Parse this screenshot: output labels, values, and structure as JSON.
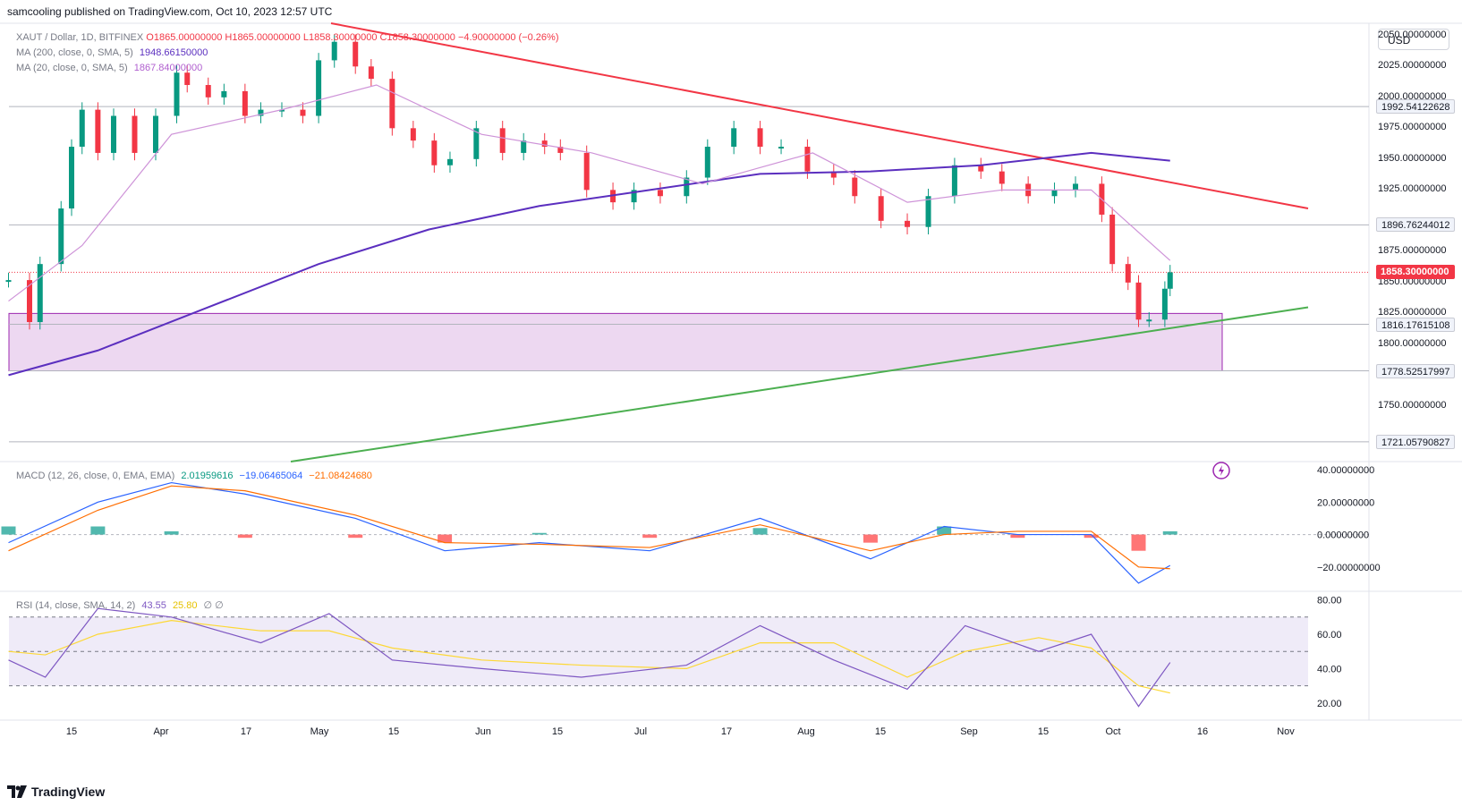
{
  "header": {
    "publisher_line": "samcooling published on TradingView.com, Oct 10, 2023 12:57 UTC"
  },
  "main_pane": {
    "symbol_prefix": "XAUT / Dollar, 1D, BITFINEX",
    "ohlc_line": "O1865.00000000  H1865.00000000  L1858.30000000  C1858.30000000  −4.90000000 (−0.26%)",
    "ma200_label": "MA (200, close, 0, SMA, 5)",
    "ma200_value": "1948.66150000",
    "ma20_label": "MA (20, close, 0, SMA, 5)",
    "ma20_value": "1867.84000000",
    "currency": "USD",
    "axis_ticks": [
      "2050.00000000",
      "2025.00000000",
      "2000.00000000",
      "1975.00000000",
      "1950.00000000",
      "1925.00000000",
      "1875.00000000",
      "1850.00000000",
      "1825.00000000",
      "1800.00000000",
      "1750.00000000"
    ],
    "price_tags": [
      "1992.54122628",
      "1896.76244012",
      "1816.17615108",
      "1778.52517997",
      "1721.05790827"
    ],
    "last_price_tag": "1858.30000000"
  },
  "macd_pane": {
    "label": "MACD (12, 26, close, 0, EMA, EMA)",
    "hist_value": "2.01959616",
    "macd_value": "−19.06465064",
    "signal_value": "−21.08424680",
    "axis_ticks": [
      "40.00000000",
      "20.00000000",
      "0.00000000",
      "−20.00000000"
    ]
  },
  "rsi_pane": {
    "label": "RSI (14, close, SMA, 14, 2)",
    "rsi_value": "43.55",
    "ma_value": "25.80",
    "extra": "∅  ∅",
    "axis_ticks": [
      "80.00",
      "60.00",
      "40.00",
      "20.00"
    ]
  },
  "time_axis": [
    "15",
    "Apr",
    "17",
    "May",
    "15",
    "Jun",
    "15",
    "Jul",
    "17",
    "Aug",
    "15",
    "Sep",
    "15",
    "Oct",
    "16",
    "Nov"
  ],
  "footer": {
    "brand": "TradingView"
  },
  "chart_data": {
    "type": "line",
    "symbol": "XAUT / Dollar",
    "timeframe": "1D",
    "ylim": [
      1705,
      2060
    ],
    "x_labels": [
      "15",
      "Apr",
      "17",
      "May",
      "15",
      "Jun",
      "15",
      "Jul",
      "17",
      "Aug",
      "15",
      "Sep",
      "15",
      "Oct",
      "16",
      "Nov"
    ],
    "price_series": [
      {
        "name": "close",
        "x": [
          "Mar 3",
          "Mar 7",
          "Mar 9",
          "Mar 13",
          "Mar 15",
          "Mar 17",
          "Mar 20",
          "Mar 23",
          "Mar 27",
          "Mar 31",
          "Apr 4",
          "Apr 6",
          "Apr 10",
          "Apr 13",
          "Apr 17",
          "Apr 20",
          "Apr 24",
          "Apr 28",
          "May 1",
          "May 4",
          "May 8",
          "May 11",
          "May 15",
          "May 19",
          "May 23",
          "May 26",
          "May 31",
          "Jun 5",
          "Jun 9",
          "Jun 13",
          "Jun 16",
          "Jun 21",
          "Jun 26",
          "Jun 30",
          "Jul 5",
          "Jul 10",
          "Jul 14",
          "Jul 19",
          "Jul 24",
          "Jul 28",
          "Aug 2",
          "Aug 7",
          "Aug 11",
          "Aug 16",
          "Aug 21",
          "Aug 25",
          "Aug 30",
          "Sep 4",
          "Sep 8",
          "Sep 13",
          "Sep 18",
          "Sep 22",
          "Sep 27",
          "Sep 29",
          "Oct 2",
          "Oct 4",
          "Oct 6",
          "Oct 9",
          "Oct 10"
        ],
        "values": [
          1852,
          1818,
          1865,
          1910,
          1960,
          1990,
          1955,
          1985,
          1955,
          1985,
          2020,
          2010,
          2000,
          2005,
          1985,
          1990,
          1990,
          1985,
          2030,
          2045,
          2025,
          2015,
          1975,
          1965,
          1945,
          1950,
          1975,
          1955,
          1965,
          1960,
          1955,
          1925,
          1915,
          1925,
          1920,
          1935,
          1960,
          1975,
          1960,
          1960,
          1940,
          1935,
          1920,
          1900,
          1895,
          1920,
          1945,
          1940,
          1930,
          1920,
          1925,
          1930,
          1905,
          1865,
          1850,
          1820,
          1820,
          1845,
          1858.3
        ]
      },
      {
        "name": "MA (200, close, 0, SMA, 5)",
        "x": [
          "Mar 3",
          "Mar 20",
          "Apr 10",
          "May 1",
          "May 22",
          "Jun 12",
          "Jul 3",
          "Jul 24",
          "Aug 14",
          "Sep 4",
          "Sep 25",
          "Oct 10"
        ],
        "values": [
          1775,
          1795,
          1830,
          1865,
          1893,
          1912,
          1925,
          1938,
          1940,
          1945,
          1955,
          1948.66
        ]
      },
      {
        "name": "MA (20, close, 0, SMA, 5)",
        "x": [
          "Mar 3",
          "Mar 17",
          "Apr 3",
          "Apr 24",
          "May 12",
          "Jun 1",
          "Jun 22",
          "Jul 13",
          "Aug 3",
          "Aug 21",
          "Sep 8",
          "Sep 25",
          "Oct 10"
        ],
        "values": [
          1835,
          1880,
          1970,
          1990,
          2010,
          1970,
          1955,
          1930,
          1955,
          1915,
          1925,
          1925,
          1867.84
        ]
      }
    ],
    "levels": [
      1992.54122628,
      1896.76244012,
      1816.17615108,
      1778.52517997,
      1721.05790827
    ],
    "support_zone": [
      1778.52517997,
      1825
    ],
    "macd": {
      "ylim": [
        -35,
        45
      ],
      "x": [
        "Mar 3",
        "Mar 20",
        "Apr 3",
        "Apr 17",
        "May 8",
        "May 25",
        "Jun 12",
        "Jul 3",
        "Jul 24",
        "Aug 14",
        "Aug 28",
        "Sep 11",
        "Sep 25",
        "Oct 4",
        "Oct 10"
      ],
      "macd": [
        -5,
        20,
        32,
        25,
        10,
        -10,
        -5,
        -10,
        10,
        -15,
        5,
        0,
        0,
        -30,
        -19.06
      ],
      "signal": [
        -10,
        15,
        30,
        27,
        12,
        -5,
        -6,
        -8,
        6,
        -10,
        0,
        2,
        2,
        -20,
        -21.08
      ]
    },
    "rsi": {
      "ylim": [
        10,
        85
      ],
      "levels": [
        70,
        50,
        30
      ],
      "x": [
        "Mar 3",
        "Mar 10",
        "Mar 20",
        "Apr 3",
        "Apr 20",
        "May 3",
        "May 15",
        "Jun 1",
        "Jun 20",
        "Jul 10",
        "Jul 24",
        "Aug 7",
        "Aug 21",
        "Sep 1",
        "Sep 15",
        "Sep 25",
        "Oct 4",
        "Oct 10"
      ],
      "rsi": [
        45,
        35,
        75,
        70,
        55,
        72,
        45,
        40,
        35,
        42,
        65,
        45,
        28,
        65,
        50,
        60,
        18,
        43.55
      ],
      "ma": [
        50,
        48,
        60,
        68,
        62,
        62,
        52,
        45,
        42,
        40,
        55,
        55,
        35,
        50,
        58,
        52,
        30,
        25.8
      ]
    }
  }
}
